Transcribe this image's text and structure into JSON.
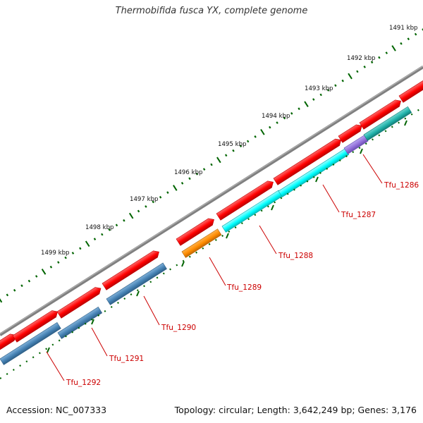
{
  "title": "Thermobifida fusca YX, complete genome",
  "footer": {
    "accession": "Accession: NC_007333",
    "summary": "Topology: circular; Length: 3,642,249 bp; Genes: 3,176"
  },
  "ruler": {
    "unit": "kbp",
    "labels": [
      "1491 kbp",
      "1492 kbp",
      "1493 kbp",
      "1494 kbp",
      "1495 kbp",
      "1496 kbp",
      "1497 kbp",
      "1498 kbp",
      "1499 kbp"
    ]
  },
  "genes": [
    {
      "name": "Tfu_1292",
      "color": "#4682b4"
    },
    {
      "name": "Tfu_1291",
      "color": "#4682b4"
    },
    {
      "name": "Tfu_1290",
      "color": "#4682b4"
    },
    {
      "name": "Tfu_1289",
      "color": "#ff8c00"
    },
    {
      "name": "Tfu_1288",
      "color": "#00ffff"
    },
    {
      "name": "Tfu_1287",
      "color": "#00ffff"
    },
    {
      "name": "Tfu_1286",
      "color": "#9370db"
    }
  ],
  "colors": {
    "forward_cds": "#ff0000",
    "backbone": "#808080",
    "ticks": "#006400",
    "gene_label": "#cc0000",
    "teal_feature": "#20b2aa"
  }
}
